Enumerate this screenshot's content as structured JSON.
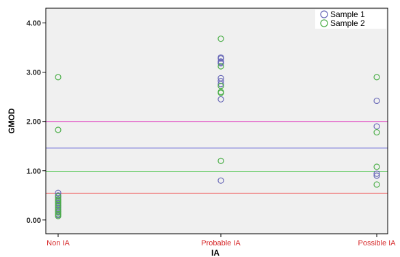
{
  "chart_data": {
    "type": "scatter",
    "xlabel": "IA",
    "ylabel": "GMOD",
    "categories": [
      "Non IA",
      "Probable IA",
      "Possible IA"
    ],
    "category_label_color": "#d62728",
    "ylim": [
      -0.28,
      4.3
    ],
    "yticks": [
      0,
      1,
      2,
      3,
      4
    ],
    "ytick_labels": [
      "0.00",
      "1.00",
      "2.00",
      "3.00",
      "4.00"
    ],
    "grid": false,
    "plot_background": "#f0f0f0",
    "legend_position": "top-right",
    "series": [
      {
        "name": "Sample 1",
        "color": "#6a6ab8",
        "marker": "open-circle",
        "points": [
          {
            "x": "Non IA",
            "y": 0.55
          },
          {
            "x": "Non IA",
            "y": 0.5
          },
          {
            "x": "Non IA",
            "y": 0.45
          },
          {
            "x": "Non IA",
            "y": 0.4
          },
          {
            "x": "Non IA",
            "y": 0.35
          },
          {
            "x": "Non IA",
            "y": 0.3
          },
          {
            "x": "Non IA",
            "y": 0.25
          },
          {
            "x": "Non IA",
            "y": 0.2
          },
          {
            "x": "Non IA",
            "y": 0.15
          },
          {
            "x": "Non IA",
            "y": 0.1
          },
          {
            "x": "Probable IA",
            "y": 3.3
          },
          {
            "x": "Probable IA",
            "y": 3.28
          },
          {
            "x": "Probable IA",
            "y": 3.22
          },
          {
            "x": "Probable IA",
            "y": 3.2
          },
          {
            "x": "Probable IA",
            "y": 3.18
          },
          {
            "x": "Probable IA",
            "y": 2.88
          },
          {
            "x": "Probable IA",
            "y": 2.82
          },
          {
            "x": "Probable IA",
            "y": 2.76
          },
          {
            "x": "Probable IA",
            "y": 2.45
          },
          {
            "x": "Probable IA",
            "y": 0.8
          },
          {
            "x": "Possible IA",
            "y": 2.42
          },
          {
            "x": "Possible IA",
            "y": 1.9
          },
          {
            "x": "Possible IA",
            "y": 0.94
          },
          {
            "x": "Possible IA",
            "y": 0.9
          }
        ]
      },
      {
        "name": "Sample 2",
        "color": "#4daf4a",
        "marker": "open-circle",
        "points": [
          {
            "x": "Non IA",
            "y": 2.9
          },
          {
            "x": "Non IA",
            "y": 1.83
          },
          {
            "x": "Non IA",
            "y": 0.48
          },
          {
            "x": "Non IA",
            "y": 0.42
          },
          {
            "x": "Non IA",
            "y": 0.38
          },
          {
            "x": "Non IA",
            "y": 0.33
          },
          {
            "x": "Non IA",
            "y": 0.28
          },
          {
            "x": "Non IA",
            "y": 0.22
          },
          {
            "x": "Non IA",
            "y": 0.17
          },
          {
            "x": "Non IA",
            "y": 0.12
          },
          {
            "x": "Non IA",
            "y": 0.08
          },
          {
            "x": "Probable IA",
            "y": 3.68
          },
          {
            "x": "Probable IA",
            "y": 3.12
          },
          {
            "x": "Probable IA",
            "y": 2.72
          },
          {
            "x": "Probable IA",
            "y": 2.6
          },
          {
            "x": "Probable IA",
            "y": 2.58
          },
          {
            "x": "Probable IA",
            "y": 1.2
          },
          {
            "x": "Possible IA",
            "y": 2.9
          },
          {
            "x": "Possible IA",
            "y": 1.78
          },
          {
            "x": "Possible IA",
            "y": 1.08
          },
          {
            "x": "Possible IA",
            "y": 0.72
          }
        ]
      }
    ],
    "reference_lines": [
      {
        "y": 2.0,
        "color": "#e040c0"
      },
      {
        "y": 1.46,
        "color": "#4a4ad0"
      },
      {
        "y": 0.99,
        "color": "#40c040"
      },
      {
        "y": 0.54,
        "color": "#f04040"
      }
    ]
  }
}
